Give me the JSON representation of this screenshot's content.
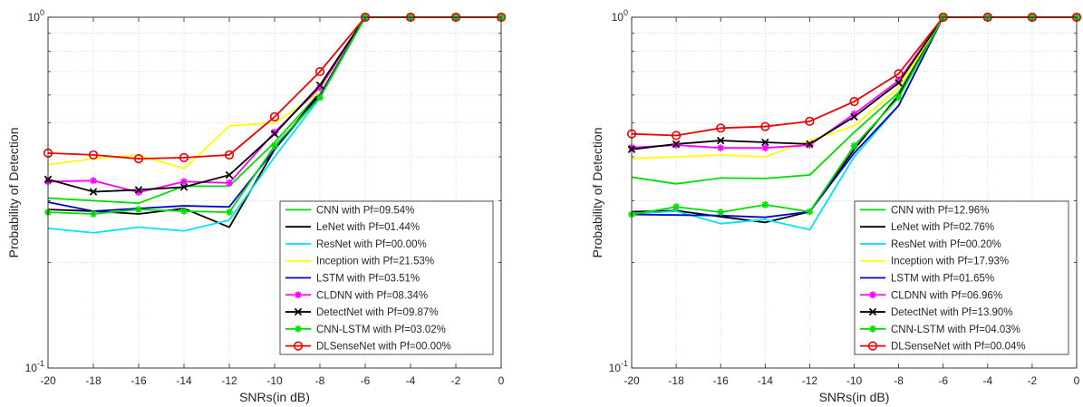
{
  "chart_data": [
    {
      "type": "line",
      "xlabel": "SNRs(in dB)",
      "ylabel": "Probability of Detection",
      "yscale": "log",
      "xlim": [
        -20,
        0
      ],
      "ylim": [
        0.1,
        1
      ],
      "x": [
        -20,
        -18,
        -16,
        -14,
        -12,
        -10,
        -8,
        -6,
        -4,
        -2,
        0
      ],
      "x_ticks": [
        "-20",
        "-18",
        "-16",
        "-14",
        "-12",
        "-10",
        "-8",
        "-6",
        "-4",
        "-2",
        "0"
      ],
      "y_ticks": [
        {
          "base": "10",
          "exp": "-1"
        },
        {
          "base": "10",
          "exp": "0"
        }
      ],
      "grid": "major and minor, dotted",
      "legend_position": "bottom-right",
      "series": [
        {
          "name": "CNN with Pf=09.54%",
          "color": "#00dd00",
          "marker": "none",
          "values": [
            0.305,
            0.3,
            0.295,
            0.33,
            0.33,
            0.44,
            0.61,
            1,
            1,
            1,
            1
          ]
        },
        {
          "name": "LeNet with Pf=01.44%",
          "color": "#000000",
          "marker": "none",
          "values": [
            0.283,
            0.28,
            0.275,
            0.285,
            0.252,
            0.42,
            0.61,
            1,
            1,
            1,
            1
          ]
        },
        {
          "name": "ResNet with Pf=00.00%",
          "color": "#00e5ee",
          "marker": "none",
          "values": [
            0.25,
            0.243,
            0.252,
            0.246,
            0.264,
            0.4,
            0.59,
            1,
            1,
            1,
            1
          ]
        },
        {
          "name": "Inception with Pf=21.53%",
          "color": "#ffff00",
          "marker": "none",
          "values": [
            0.38,
            0.395,
            0.405,
            0.37,
            0.49,
            0.5,
            0.61,
            1,
            1,
            1,
            1
          ]
        },
        {
          "name": "LSTM with Pf=03.51%",
          "color": "#0000cc",
          "marker": "none",
          "values": [
            0.297,
            0.28,
            0.285,
            0.29,
            0.288,
            0.42,
            0.6,
            1,
            1,
            1,
            1
          ]
        },
        {
          "name": "CLDNN with Pf=08.34%",
          "color": "#ff00ff",
          "marker": "asterisk",
          "values": [
            0.34,
            0.342,
            0.317,
            0.34,
            0.337,
            0.47,
            0.63,
            1,
            1,
            1,
            1
          ]
        },
        {
          "name": "DetectNet with Pf=09.87%",
          "color": "#000000",
          "marker": "x",
          "values": [
            0.345,
            0.318,
            0.322,
            0.328,
            0.355,
            0.465,
            0.64,
            1,
            1,
            1,
            1
          ]
        },
        {
          "name": "CNN-LSTM with Pf=03.02%",
          "color": "#00dd00",
          "marker": "asterisk",
          "values": [
            0.278,
            0.275,
            0.283,
            0.28,
            0.278,
            0.43,
            0.59,
            1,
            1,
            1,
            1
          ]
        },
        {
          "name": "DLSenseNet with Pf=00.00%",
          "color": "#ee0000",
          "marker": "circle",
          "values": [
            0.41,
            0.405,
            0.395,
            0.398,
            0.405,
            0.52,
            0.7,
            1,
            1,
            1,
            1
          ]
        }
      ]
    },
    {
      "type": "line",
      "xlabel": "SNRs(in dB)",
      "ylabel": "Probability of Detection",
      "yscale": "log",
      "xlim": [
        -20,
        0
      ],
      "ylim": [
        0.1,
        1
      ],
      "x": [
        -20,
        -18,
        -16,
        -14,
        -12,
        -10,
        -8,
        -6,
        -4,
        -2,
        0
      ],
      "x_ticks": [
        "-20",
        "-18",
        "-16",
        "-14",
        "-12",
        "-10",
        "-8",
        "-6",
        "-4",
        "-2",
        "0"
      ],
      "y_ticks": [
        {
          "base": "10",
          "exp": "-1"
        },
        {
          "base": "10",
          "exp": "0"
        }
      ],
      "grid": "major and minor, dotted",
      "legend_position": "bottom-right",
      "series": [
        {
          "name": "CNN with Pf=12.96%",
          "color": "#00dd00",
          "marker": "none",
          "values": [
            0.35,
            0.335,
            0.348,
            0.347,
            0.355,
            0.47,
            0.61,
            1,
            1,
            1,
            1
          ]
        },
        {
          "name": "LeNet with Pf=02.76%",
          "color": "#000000",
          "marker": "none",
          "values": [
            0.279,
            0.281,
            0.27,
            0.26,
            0.279,
            0.42,
            0.6,
            1,
            1,
            1,
            1
          ]
        },
        {
          "name": "ResNet with Pf=00.20%",
          "color": "#00e5ee",
          "marker": "none",
          "values": [
            0.275,
            0.28,
            0.258,
            0.265,
            0.248,
            0.4,
            0.56,
            1,
            1,
            1,
            1
          ]
        },
        {
          "name": "Inception with Pf=17.93%",
          "color": "#ffff00",
          "marker": "none",
          "values": [
            0.395,
            0.4,
            0.405,
            0.4,
            0.445,
            0.49,
            0.63,
            1,
            1,
            1,
            1
          ]
        },
        {
          "name": "LSTM with Pf=01.65%",
          "color": "#0000cc",
          "marker": "none",
          "values": [
            0.274,
            0.273,
            0.272,
            0.269,
            0.279,
            0.41,
            0.56,
            1,
            1,
            1,
            1
          ]
        },
        {
          "name": "CLDNN with Pf=06.96%",
          "color": "#ff00ff",
          "marker": "asterisk",
          "values": [
            0.425,
            0.432,
            0.424,
            0.424,
            0.432,
            0.53,
            0.66,
            1,
            1,
            1,
            1
          ]
        },
        {
          "name": "DetectNet with Pf=13.90%",
          "color": "#000000",
          "marker": "x",
          "values": [
            0.42,
            0.435,
            0.445,
            0.44,
            0.435,
            0.52,
            0.65,
            1,
            1,
            1,
            1
          ]
        },
        {
          "name": "CNN-LSTM with Pf=04.03%",
          "color": "#00dd00",
          "marker": "asterisk",
          "values": [
            0.274,
            0.288,
            0.278,
            0.292,
            0.279,
            0.43,
            0.59,
            1,
            1,
            1,
            1
          ]
        },
        {
          "name": "DLSenseNet with Pf=00.04%",
          "color": "#ee0000",
          "marker": "circle",
          "values": [
            0.465,
            0.46,
            0.483,
            0.488,
            0.505,
            0.575,
            0.69,
            1,
            1,
            1,
            1
          ]
        }
      ]
    }
  ]
}
